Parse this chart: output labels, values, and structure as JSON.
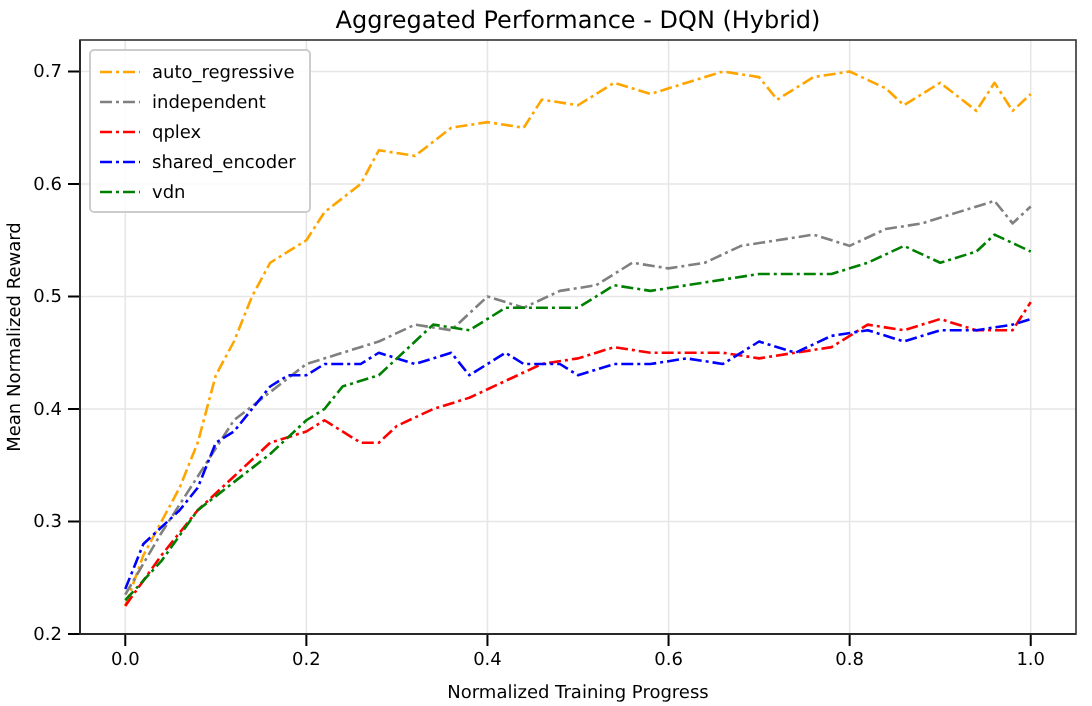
{
  "chart_data": {
    "type": "line",
    "title": "Aggregated Performance - DQN (Hybrid)",
    "xlabel": "Normalized Training Progress",
    "ylabel": "Mean Normalized Reward",
    "xlim": [
      -0.05,
      1.05
    ],
    "ylim": [
      0.2,
      0.728
    ],
    "xticks": [
      {
        "value": 0,
        "label": "0.0"
      },
      {
        "value": 0.2,
        "label": "0.2"
      },
      {
        "value": 0.4,
        "label": "0.4"
      },
      {
        "value": 0.6,
        "label": "0.6"
      },
      {
        "value": 0.8,
        "label": "0.8"
      },
      {
        "value": 1,
        "label": "1.0"
      }
    ],
    "yticks": [
      {
        "value": 0.2,
        "label": "0.2"
      },
      {
        "value": 0.3,
        "label": "0.3"
      },
      {
        "value": 0.4,
        "label": "0.4"
      },
      {
        "value": 0.5,
        "label": "0.5"
      },
      {
        "value": 0.6,
        "label": "0.6"
      },
      {
        "value": 0.7,
        "label": "0.7"
      }
    ],
    "grid": true,
    "legend": "top left",
    "line_style": "dashed",
    "series": [
      {
        "name": "auto_regressive",
        "color": "#ffa500",
        "x": [
          0,
          0.02,
          0.04,
          0.06,
          0.08,
          0.1,
          0.12,
          0.14,
          0.16,
          0.2,
          0.22,
          0.26,
          0.28,
          0.32,
          0.36,
          0.4,
          0.44,
          0.46,
          0.5,
          0.54,
          0.58,
          0.62,
          0.66,
          0.7,
          0.72,
          0.76,
          0.8,
          0.84,
          0.86,
          0.9,
          0.94,
          0.96,
          0.98,
          1.0
        ],
        "values": [
          0.225,
          0.27,
          0.3,
          0.33,
          0.37,
          0.43,
          0.46,
          0.5,
          0.53,
          0.55,
          0.575,
          0.6,
          0.63,
          0.625,
          0.65,
          0.655,
          0.65,
          0.675,
          0.67,
          0.69,
          0.68,
          0.69,
          0.7,
          0.695,
          0.675,
          0.695,
          0.7,
          0.685,
          0.67,
          0.69,
          0.665,
          0.69,
          0.665,
          0.68
        ]
      },
      {
        "name": "independent",
        "color": "#808080",
        "x": [
          0,
          0.04,
          0.08,
          0.12,
          0.16,
          0.2,
          0.24,
          0.28,
          0.32,
          0.36,
          0.4,
          0.44,
          0.48,
          0.52,
          0.56,
          0.6,
          0.64,
          0.68,
          0.72,
          0.76,
          0.8,
          0.84,
          0.88,
          0.92,
          0.96,
          0.98,
          1.0
        ],
        "values": [
          0.235,
          0.29,
          0.34,
          0.39,
          0.415,
          0.44,
          0.45,
          0.46,
          0.475,
          0.47,
          0.5,
          0.49,
          0.505,
          0.51,
          0.53,
          0.525,
          0.53,
          0.545,
          0.55,
          0.555,
          0.545,
          0.56,
          0.565,
          0.575,
          0.585,
          0.565,
          0.58
        ]
      },
      {
        "name": "qplex",
        "color": "#ff0000",
        "x": [
          0,
          0.04,
          0.08,
          0.12,
          0.16,
          0.2,
          0.22,
          0.26,
          0.28,
          0.3,
          0.34,
          0.38,
          0.42,
          0.46,
          0.5,
          0.54,
          0.58,
          0.62,
          0.66,
          0.7,
          0.74,
          0.78,
          0.82,
          0.86,
          0.9,
          0.94,
          0.98,
          1.0
        ],
        "values": [
          0.225,
          0.27,
          0.31,
          0.34,
          0.37,
          0.38,
          0.39,
          0.37,
          0.37,
          0.385,
          0.4,
          0.41,
          0.425,
          0.44,
          0.445,
          0.455,
          0.45,
          0.45,
          0.45,
          0.445,
          0.45,
          0.455,
          0.475,
          0.47,
          0.48,
          0.47,
          0.47,
          0.495
        ]
      },
      {
        "name": "shared_encoder",
        "color": "#0000ff",
        "x": [
          0,
          0.02,
          0.06,
          0.08,
          0.1,
          0.12,
          0.14,
          0.16,
          0.18,
          0.2,
          0.22,
          0.26,
          0.28,
          0.32,
          0.36,
          0.38,
          0.42,
          0.44,
          0.48,
          0.5,
          0.54,
          0.58,
          0.62,
          0.66,
          0.7,
          0.74,
          0.78,
          0.82,
          0.86,
          0.9,
          0.94,
          0.98,
          1.0
        ],
        "values": [
          0.24,
          0.28,
          0.31,
          0.33,
          0.37,
          0.38,
          0.4,
          0.42,
          0.43,
          0.43,
          0.44,
          0.44,
          0.45,
          0.44,
          0.45,
          0.43,
          0.45,
          0.44,
          0.44,
          0.43,
          0.44,
          0.44,
          0.445,
          0.44,
          0.46,
          0.45,
          0.465,
          0.47,
          0.46,
          0.47,
          0.47,
          0.475,
          0.48
        ]
      },
      {
        "name": "vdn",
        "color": "#008000",
        "x": [
          0,
          0.04,
          0.08,
          0.12,
          0.16,
          0.2,
          0.22,
          0.24,
          0.28,
          0.32,
          0.34,
          0.38,
          0.42,
          0.46,
          0.5,
          0.54,
          0.58,
          0.62,
          0.66,
          0.7,
          0.74,
          0.78,
          0.82,
          0.86,
          0.9,
          0.94,
          0.96,
          1.0
        ],
        "values": [
          0.23,
          0.265,
          0.31,
          0.335,
          0.36,
          0.39,
          0.4,
          0.42,
          0.43,
          0.46,
          0.475,
          0.47,
          0.49,
          0.49,
          0.49,
          0.51,
          0.505,
          0.51,
          0.515,
          0.52,
          0.52,
          0.52,
          0.53,
          0.545,
          0.53,
          0.54,
          0.555,
          0.54
        ]
      }
    ]
  }
}
